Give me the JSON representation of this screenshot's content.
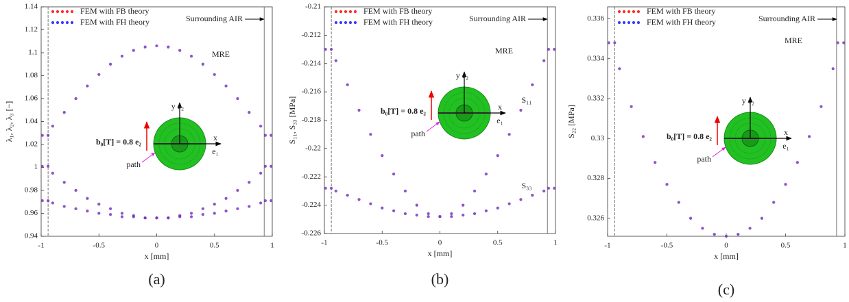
{
  "chart_data": [
    {
      "type": "scatter",
      "caption": "(a)",
      "xlabel": "x [mm]",
      "ylabel": "λ₁, λ₂, λ₃ [−]",
      "xlim": [
        -1,
        1
      ],
      "ylim": [
        0.94,
        1.14
      ],
      "xticks": [
        -1,
        -0.5,
        0,
        0.5,
        1
      ],
      "yticks": [
        0.94,
        0.96,
        0.98,
        1,
        1.02,
        1.04,
        1.06,
        1.08,
        1.1,
        1.12,
        1.14
      ],
      "vlines": [
        -0.94,
        0.93
      ],
      "x": [
        -0.99,
        -0.94,
        -0.9,
        -0.8,
        -0.7,
        -0.6,
        -0.5,
        -0.4,
        -0.3,
        -0.2,
        -0.1,
        0,
        0.1,
        0.2,
        0.3,
        0.4,
        0.5,
        0.6,
        0.7,
        0.8,
        0.9,
        0.94,
        0.99
      ],
      "series": [
        {
          "name": "FEM with FB theory",
          "color": "#ff2a2a",
          "values": [
            1.028,
            1.028,
            1.036,
            1.048,
            1.06,
            1.071,
            1.081,
            1.09,
            1.097,
            1.102,
            1.105,
            1.106,
            1.105,
            1.102,
            1.097,
            1.09,
            1.081,
            1.071,
            1.06,
            1.048,
            1.036,
            1.028,
            1.028
          ]
        },
        {
          "name": "FEM with FH theory",
          "color": "#3a3aff",
          "values": [
            1.028,
            1.028,
            1.036,
            1.048,
            1.06,
            1.071,
            1.081,
            1.09,
            1.097,
            1.102,
            1.105,
            1.106,
            1.105,
            1.102,
            1.097,
            1.09,
            1.081,
            1.071,
            1.06,
            1.048,
            1.036,
            1.028,
            1.028
          ]
        },
        {
          "color": "#ff2a2a",
          "values": [
            1.001,
            1.001,
            0.995,
            0.987,
            0.98,
            0.973,
            0.968,
            0.964,
            0.96,
            0.958,
            0.956,
            0.956,
            0.956,
            0.958,
            0.96,
            0.964,
            0.968,
            0.973,
            0.98,
            0.987,
            0.995,
            1.001,
            1.001
          ]
        },
        {
          "color": "#3a3aff",
          "values": [
            1.001,
            1.001,
            0.995,
            0.987,
            0.98,
            0.973,
            0.968,
            0.964,
            0.96,
            0.958,
            0.956,
            0.956,
            0.956,
            0.958,
            0.96,
            0.964,
            0.968,
            0.973,
            0.98,
            0.987,
            0.995,
            1.001,
            1.001
          ]
        },
        {
          "color": "#ff2a2a",
          "values": [
            0.971,
            0.971,
            0.969,
            0.966,
            0.964,
            0.962,
            0.96,
            0.959,
            0.957,
            0.957,
            0.956,
            0.956,
            0.956,
            0.957,
            0.957,
            0.959,
            0.96,
            0.962,
            0.964,
            0.966,
            0.969,
            0.971,
            0.971
          ]
        },
        {
          "color": "#3a3aff",
          "values": [
            0.971,
            0.971,
            0.969,
            0.966,
            0.964,
            0.962,
            0.96,
            0.959,
            0.957,
            0.957,
            0.956,
            0.956,
            0.956,
            0.957,
            0.957,
            0.959,
            0.96,
            0.962,
            0.964,
            0.966,
            0.969,
            0.971,
            0.971
          ]
        }
      ],
      "annotations": {
        "air": "Surrounding AIR",
        "mre": "MRE",
        "b0": "b₀[T] = 0.8 e₂",
        "path": "path",
        "e2": "y e₂",
        "x": "x",
        "e1": "e₁"
      }
    },
    {
      "type": "scatter",
      "caption": "(b)",
      "xlabel": "x [mm]",
      "ylabel": "S₁₁, S₃₃ [MPa]",
      "xlim": [
        -1,
        1
      ],
      "ylim": [
        -0.226,
        -0.21
      ],
      "xticks": [
        -1,
        -0.5,
        0,
        0.5,
        1
      ],
      "yticks": [
        -0.226,
        -0.224,
        -0.222,
        -0.22,
        -0.218,
        -0.216,
        -0.214,
        -0.212,
        -0.21
      ],
      "vlines": [
        -0.94,
        0.93
      ],
      "x": [
        -0.99,
        -0.94,
        -0.9,
        -0.8,
        -0.7,
        -0.6,
        -0.5,
        -0.4,
        -0.3,
        -0.2,
        -0.1,
        0,
        0.1,
        0.2,
        0.3,
        0.4,
        0.5,
        0.6,
        0.7,
        0.8,
        0.9,
        0.94,
        0.99
      ],
      "series": [
        {
          "name": "FEM with FB theory",
          "color": "#ff2a2a",
          "values": [
            -0.213,
            -0.213,
            -0.2138,
            -0.2155,
            -0.2173,
            -0.219,
            -0.2205,
            -0.2218,
            -0.223,
            -0.224,
            -0.2246,
            -0.2248,
            -0.2246,
            -0.224,
            -0.223,
            -0.2218,
            -0.2205,
            -0.219,
            -0.2173,
            -0.2155,
            -0.2138,
            -0.213,
            -0.213
          ]
        },
        {
          "name": "FEM with FH theory",
          "color": "#3a3aff",
          "values": [
            -0.213,
            -0.213,
            -0.2138,
            -0.2155,
            -0.2173,
            -0.219,
            -0.2205,
            -0.2218,
            -0.223,
            -0.224,
            -0.2246,
            -0.2248,
            -0.2246,
            -0.224,
            -0.223,
            -0.2218,
            -0.2205,
            -0.219,
            -0.2173,
            -0.2155,
            -0.2138,
            -0.213,
            -0.213
          ]
        },
        {
          "color": "#ff2a2a",
          "values": [
            -0.2228,
            -0.2228,
            -0.223,
            -0.2233,
            -0.2236,
            -0.2239,
            -0.2242,
            -0.2244,
            -0.2246,
            -0.2247,
            -0.2248,
            -0.2248,
            -0.2248,
            -0.2247,
            -0.2246,
            -0.2244,
            -0.2242,
            -0.2239,
            -0.2236,
            -0.2233,
            -0.223,
            -0.2228,
            -0.2228
          ]
        },
        {
          "color": "#3a3aff",
          "values": [
            -0.2228,
            -0.2228,
            -0.223,
            -0.2233,
            -0.2236,
            -0.2239,
            -0.2242,
            -0.2244,
            -0.2246,
            -0.2247,
            -0.2248,
            -0.2248,
            -0.2248,
            -0.2247,
            -0.2246,
            -0.2244,
            -0.2242,
            -0.2239,
            -0.2236,
            -0.2233,
            -0.223,
            -0.2228,
            -0.2228
          ]
        }
      ],
      "annotations": {
        "air": "Surrounding AIR",
        "mre": "MRE",
        "b0": "b₀[T] = 0.8 e₂",
        "path": "path",
        "e2": "y e₂",
        "x": "x",
        "e1": "e₁",
        "s11": "S₁₁",
        "s33": "S₃₃"
      }
    },
    {
      "type": "scatter",
      "caption": "(c)",
      "xlabel": "x [mm]",
      "ylabel": "S₂₂ [MPa]",
      "xlim": [
        -1,
        1
      ],
      "ylim": [
        0.3251,
        0.3366
      ],
      "xticks": [
        -1,
        -0.5,
        0,
        0.5,
        1
      ],
      "yticks": [
        0.326,
        0.328,
        0.33,
        0.332,
        0.334,
        0.336
      ],
      "vlines": [
        -0.94,
        0.93
      ],
      "x": [
        -0.99,
        -0.94,
        -0.9,
        -0.8,
        -0.7,
        -0.6,
        -0.5,
        -0.4,
        -0.3,
        -0.2,
        -0.1,
        0,
        0.1,
        0.2,
        0.3,
        0.4,
        0.5,
        0.6,
        0.7,
        0.8,
        0.9,
        0.94,
        0.99
      ],
      "series": [
        {
          "name": "FEM with FB theory",
          "color": "#ff2a2a",
          "values": [
            0.3348,
            0.3348,
            0.3335,
            0.3316,
            0.3301,
            0.3288,
            0.3277,
            0.3268,
            0.326,
            0.3255,
            0.3252,
            0.3251,
            0.3252,
            0.3255,
            0.326,
            0.3268,
            0.3277,
            0.3288,
            0.3301,
            0.3316,
            0.3335,
            0.3348,
            0.3348
          ]
        },
        {
          "name": "FEM with FH theory",
          "color": "#3a3aff",
          "values": [
            0.3348,
            0.3348,
            0.3335,
            0.3316,
            0.3301,
            0.3288,
            0.3277,
            0.3268,
            0.326,
            0.3255,
            0.3252,
            0.3251,
            0.3252,
            0.3255,
            0.326,
            0.3268,
            0.3277,
            0.3288,
            0.3301,
            0.3316,
            0.3335,
            0.3348,
            0.3348
          ]
        }
      ],
      "annotations": {
        "air": "Surrounding AIR",
        "mre": "MRE",
        "b0": "b₀[T] = 0.8 e₂",
        "path": "path",
        "e2": "y e₂",
        "x": "x",
        "e1": "e₁"
      }
    }
  ]
}
